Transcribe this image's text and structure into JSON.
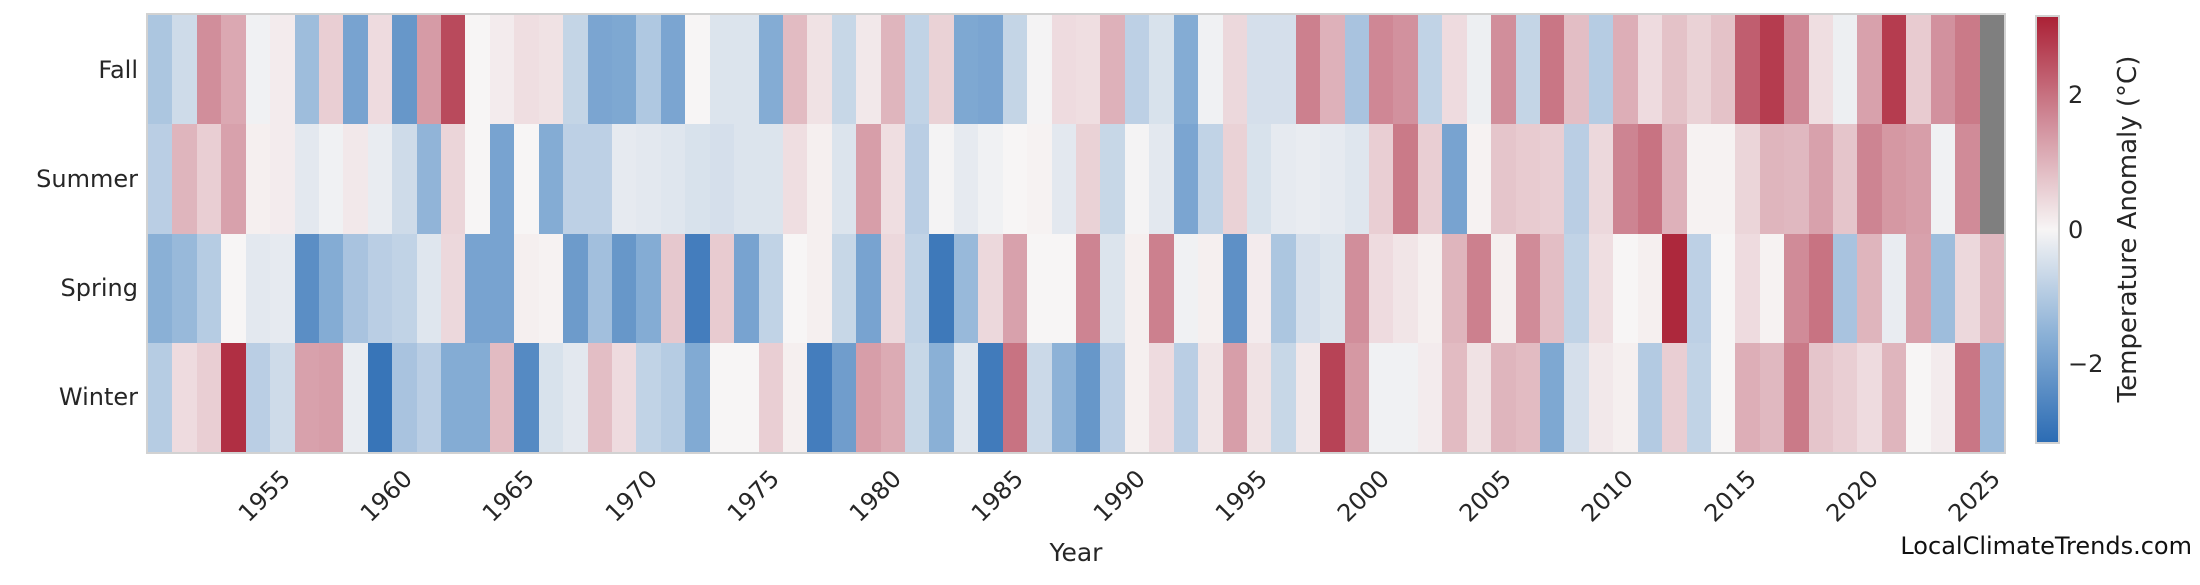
{
  "figure": {
    "background": "#ffffff",
    "text_color": "#262626",
    "watermark": "LocalClimateTrends.com"
  },
  "chart_data": {
    "type": "heatmap",
    "title": "",
    "xlabel": "Year",
    "x_start": 1950,
    "x_end": 2025,
    "xticks": [
      "1955",
      "1960",
      "1965",
      "1970",
      "1975",
      "1980",
      "1985",
      "1990",
      "1995",
      "2000",
      "2005",
      "2010",
      "2015",
      "2020",
      "2025"
    ],
    "rows": [
      "Fall",
      "Summer",
      "Spring",
      "Winter"
    ],
    "missing_value_color": "#7f7f7f",
    "series": [
      {
        "name": "Fall",
        "values": [
          -1.1,
          -0.6,
          1.6,
          1.2,
          -0.1,
          0.15,
          -1.3,
          0.6,
          -1.9,
          0.4,
          -2.2,
          1.4,
          2.6,
          0.0,
          0.15,
          0.35,
          0.3,
          -0.75,
          -1.85,
          -1.8,
          -1.05,
          -1.85,
          0.0,
          -0.4,
          -0.4,
          -1.7,
          0.9,
          0.3,
          -0.7,
          0.2,
          1.0,
          -0.8,
          0.55,
          -1.8,
          -1.85,
          -0.75,
          -0.05,
          0.4,
          0.35,
          1.05,
          -0.85,
          -0.45,
          -1.7,
          -0.1,
          0.45,
          -0.5,
          -0.5,
          1.8,
          1.05,
          -1.15,
          1.7,
          1.55,
          -0.8,
          0.4,
          -0.15,
          1.6,
          -0.75,
          1.95,
          0.85,
          -0.95,
          1.1,
          0.4,
          0.8,
          0.55,
          0.8,
          2.3,
          2.8,
          1.7,
          0.35,
          -0.15,
          1.3,
          2.8,
          0.65,
          1.55,
          1.9,
          null
        ]
      },
      {
        "name": "Summer",
        "values": [
          -0.9,
          1.0,
          0.6,
          1.3,
          0.1,
          0.15,
          -0.3,
          -0.1,
          0.2,
          -0.2,
          -0.6,
          -1.5,
          0.5,
          0.0,
          -1.9,
          0.0,
          -1.7,
          -0.85,
          -0.85,
          -0.25,
          -0.3,
          -0.35,
          -0.45,
          -0.5,
          -0.4,
          -0.4,
          0.35,
          0.1,
          -0.4,
          1.35,
          0.35,
          -0.9,
          -0.05,
          -0.25,
          -0.1,
          0.0,
          0.05,
          -0.3,
          0.55,
          -0.7,
          -0.05,
          -0.3,
          -1.85,
          -0.8,
          0.55,
          -0.45,
          -0.25,
          -0.2,
          -0.25,
          -0.35,
          0.6,
          1.9,
          0.6,
          -1.9,
          0.05,
          0.75,
          0.65,
          0.6,
          -0.9,
          0.45,
          1.75,
          2.0,
          1.05,
          0.05,
          0.05,
          0.5,
          1.0,
          0.95,
          1.3,
          0.75,
          1.75,
          1.45,
          1.35,
          -0.1,
          1.65,
          null
        ]
      },
      {
        "name": "Spring",
        "values": [
          -1.6,
          -1.4,
          -0.95,
          0.0,
          -0.3,
          -0.25,
          -2.4,
          -1.7,
          -1.15,
          -0.9,
          -0.8,
          -0.35,
          0.45,
          -1.9,
          -1.9,
          0.1,
          0.05,
          -2.1,
          -1.25,
          -2.2,
          -1.7,
          0.7,
          -2.8,
          0.65,
          -1.9,
          -0.8,
          0.0,
          0.1,
          -0.7,
          -1.9,
          0.45,
          -0.8,
          -2.9,
          -1.4,
          0.45,
          1.3,
          0.0,
          0.0,
          1.75,
          -0.4,
          0.1,
          1.8,
          -0.1,
          0.1,
          -2.35,
          0.15,
          -1.1,
          -0.5,
          -0.4,
          1.6,
          0.4,
          0.25,
          0.1,
          1.0,
          1.8,
          0.1,
          1.65,
          0.85,
          -0.8,
          0.35,
          0.0,
          0.1,
          3.1,
          -0.85,
          0.0,
          0.4,
          0.05,
          1.65,
          2.0,
          -1.15,
          1.0,
          -0.2,
          1.3,
          -1.3,
          0.45,
          0.95
        ]
      },
      {
        "name": "Winter",
        "values": [
          -0.95,
          0.4,
          0.6,
          3.0,
          -0.9,
          -0.6,
          1.3,
          1.35,
          -0.2,
          -3.0,
          -1.15,
          -0.9,
          -1.7,
          -1.7,
          0.9,
          -2.5,
          -0.45,
          -0.3,
          0.85,
          0.4,
          -0.8,
          -0.95,
          -1.75,
          0.0,
          0.0,
          0.6,
          0.1,
          -2.8,
          -2.05,
          1.35,
          1.15,
          -0.7,
          -1.6,
          -0.35,
          -2.85,
          2.0,
          -0.65,
          -1.55,
          -2.2,
          -0.9,
          0.1,
          0.4,
          -0.9,
          0.25,
          1.35,
          0.3,
          -0.7,
          0.2,
          2.7,
          1.45,
          -0.1,
          -0.1,
          0.15,
          0.9,
          0.3,
          1.0,
          0.9,
          -1.8,
          -0.5,
          0.2,
          0.1,
          -1.0,
          0.6,
          -0.8,
          0.0,
          1.1,
          0.95,
          1.9,
          0.75,
          0.6,
          0.4,
          1.0,
          0.0,
          0.15,
          1.95,
          -1.35
        ]
      }
    ],
    "colorbar": {
      "label": "Temperature Anomaly (°C)",
      "vmin": -3.2,
      "vmax": 3.2,
      "ticks": [
        {
          "label": "2",
          "value": 2
        },
        {
          "label": "0",
          "value": 0
        },
        {
          "label": "−2",
          "value": -2
        }
      ],
      "colormap": [
        {
          "v": -3.2,
          "c": "#2c6cb4"
        },
        {
          "v": -1.6,
          "c": "#8ab0d6"
        },
        {
          "v": 0.0,
          "c": "#f7f5f5"
        },
        {
          "v": 1.6,
          "c": "#d18e9b"
        },
        {
          "v": 3.2,
          "c": "#ab2136"
        }
      ]
    }
  }
}
